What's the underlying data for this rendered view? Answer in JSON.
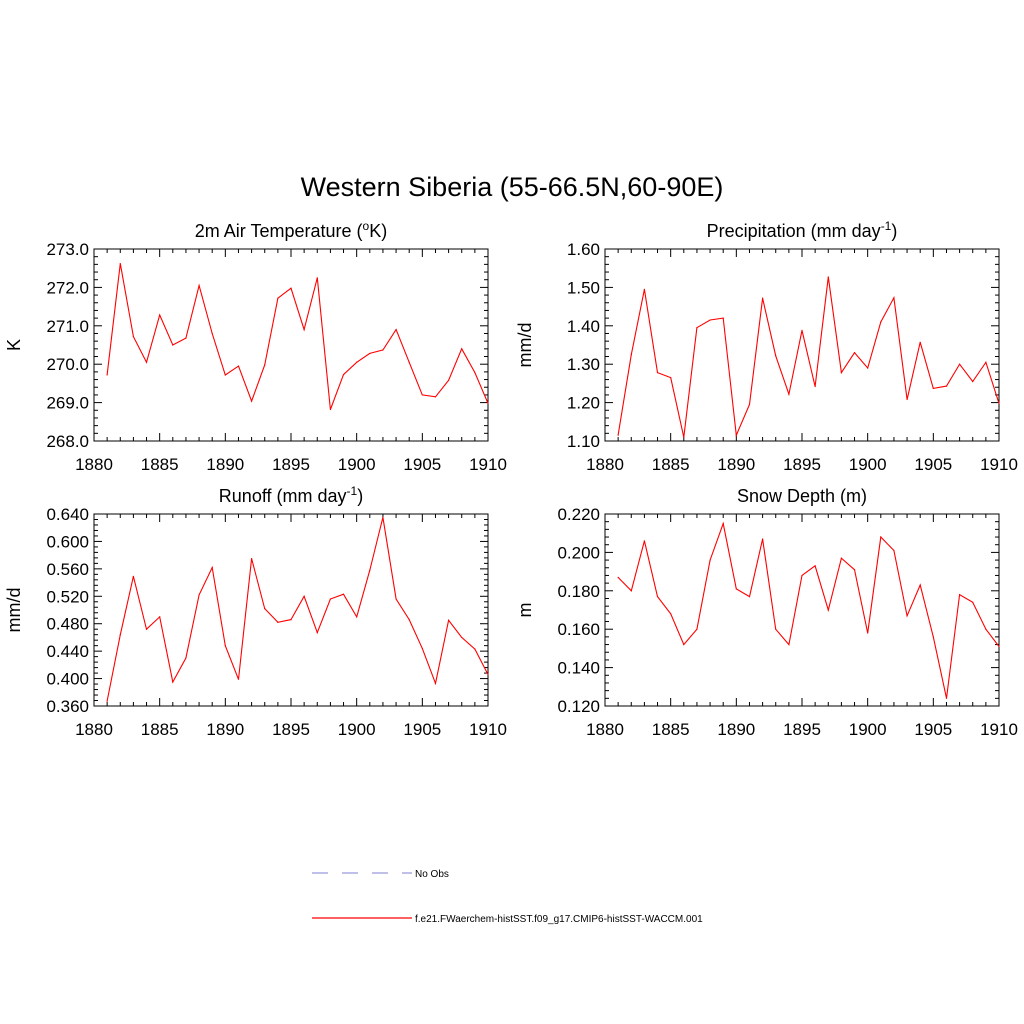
{
  "page": {
    "title": "Western Siberia (55-66.5N,60-90E)"
  },
  "legend": {
    "items": [
      {
        "label": "No Obs",
        "color": "#9999dd",
        "dash": true
      },
      {
        "label": "f.e21.FWaerchem-histSST.f09_g17.CMIP6-histSST-WACCM.001",
        "color": "#ff0000",
        "dash": false
      }
    ]
  },
  "chart_data": [
    {
      "id": "temp",
      "type": "line",
      "title_main": "2m Air Temperature (",
      "title_sup": "o",
      "title_tail": "K)",
      "ylabel": "K",
      "xlim": [
        1880,
        1910
      ],
      "ylim": [
        268.0,
        273.0
      ],
      "xticks": [
        1880,
        1885,
        1890,
        1895,
        1900,
        1905,
        1910
      ],
      "yticks": [
        268.0,
        269.0,
        270.0,
        271.0,
        272.0,
        273.0
      ],
      "ytick_decimals": 1,
      "color": "#ff0000",
      "x": [
        1881,
        1882,
        1883,
        1884,
        1885,
        1886,
        1887,
        1888,
        1889,
        1890,
        1891,
        1892,
        1893,
        1894,
        1895,
        1896,
        1897,
        1898,
        1899,
        1900,
        1901,
        1902,
        1903,
        1904,
        1905,
        1906,
        1907,
        1908,
        1909,
        1910
      ],
      "y": [
        269.72,
        272.62,
        270.72,
        270.05,
        271.28,
        270.5,
        270.68,
        272.05,
        270.8,
        269.72,
        269.95,
        269.04,
        269.98,
        271.72,
        271.98,
        270.9,
        272.25,
        268.82,
        269.73,
        270.05,
        270.28,
        270.37,
        270.9,
        270.05,
        269.2,
        269.15,
        269.58,
        270.4,
        269.78,
        268.98
      ]
    },
    {
      "id": "precip",
      "type": "line",
      "title_main": "Precipitation (mm day",
      "title_sup": "-1",
      "title_tail": ")",
      "ylabel": "mm/d",
      "xlim": [
        1880,
        1910
      ],
      "ylim": [
        1.1,
        1.6
      ],
      "xticks": [
        1880,
        1885,
        1890,
        1895,
        1900,
        1905,
        1910
      ],
      "yticks": [
        1.1,
        1.2,
        1.3,
        1.4,
        1.5,
        1.6
      ],
      "ytick_decimals": 2,
      "color": "#ff0000",
      "x": [
        1881,
        1882,
        1883,
        1884,
        1885,
        1886,
        1887,
        1888,
        1889,
        1890,
        1891,
        1892,
        1893,
        1894,
        1895,
        1896,
        1897,
        1898,
        1899,
        1900,
        1901,
        1902,
        1903,
        1904,
        1905,
        1906,
        1907,
        1908,
        1909,
        1910
      ],
      "y": [
        1.115,
        1.325,
        1.495,
        1.278,
        1.265,
        1.11,
        1.395,
        1.415,
        1.42,
        1.115,
        1.195,
        1.472,
        1.322,
        1.222,
        1.388,
        1.242,
        1.527,
        1.278,
        1.33,
        1.29,
        1.41,
        1.473,
        1.208,
        1.357,
        1.237,
        1.243,
        1.3,
        1.255,
        1.305,
        1.198
      ]
    },
    {
      "id": "runoff",
      "type": "line",
      "title_main": "Runoff (mm day",
      "title_sup": "-1",
      "title_tail": ")",
      "ylabel": "mm/d",
      "xlim": [
        1880,
        1910
      ],
      "ylim": [
        0.36,
        0.64
      ],
      "xticks": [
        1880,
        1885,
        1890,
        1895,
        1900,
        1905,
        1910
      ],
      "yticks": [
        0.36,
        0.4,
        0.44,
        0.48,
        0.52,
        0.56,
        0.6,
        0.64
      ],
      "ytick_decimals": 3,
      "color": "#ff0000",
      "x": [
        1881,
        1882,
        1883,
        1884,
        1885,
        1886,
        1887,
        1888,
        1889,
        1890,
        1891,
        1892,
        1893,
        1894,
        1895,
        1896,
        1897,
        1898,
        1899,
        1900,
        1901,
        1902,
        1903,
        1904,
        1905,
        1906,
        1907,
        1908,
        1909,
        1910
      ],
      "y": [
        0.367,
        0.464,
        0.549,
        0.472,
        0.49,
        0.395,
        0.43,
        0.522,
        0.562,
        0.448,
        0.399,
        0.575,
        0.502,
        0.482,
        0.486,
        0.52,
        0.467,
        0.516,
        0.523,
        0.49,
        0.558,
        0.635,
        0.516,
        0.486,
        0.444,
        0.393,
        0.485,
        0.46,
        0.443,
        0.406
      ]
    },
    {
      "id": "snow",
      "type": "line",
      "title_main": "Snow Depth (m)",
      "title_sup": "",
      "title_tail": "",
      "ylabel": "m",
      "xlim": [
        1880,
        1910
      ],
      "ylim": [
        0.12,
        0.22
      ],
      "xticks": [
        1880,
        1885,
        1890,
        1895,
        1900,
        1905,
        1910
      ],
      "yticks": [
        0.12,
        0.14,
        0.16,
        0.18,
        0.2,
        0.22
      ],
      "ytick_decimals": 3,
      "color": "#ff0000",
      "x": [
        1881,
        1882,
        1883,
        1884,
        1885,
        1886,
        1887,
        1888,
        1889,
        1890,
        1891,
        1892,
        1893,
        1894,
        1895,
        1896,
        1897,
        1898,
        1899,
        1900,
        1901,
        1902,
        1903,
        1904,
        1905,
        1906,
        1907,
        1908,
        1909,
        1910
      ],
      "y": [
        0.187,
        0.18,
        0.206,
        0.177,
        0.168,
        0.152,
        0.16,
        0.196,
        0.215,
        0.181,
        0.177,
        0.207,
        0.16,
        0.152,
        0.188,
        0.193,
        0.17,
        0.197,
        0.191,
        0.158,
        0.208,
        0.201,
        0.167,
        0.183,
        0.156,
        0.124,
        0.178,
        0.174,
        0.16,
        0.151
      ]
    }
  ]
}
